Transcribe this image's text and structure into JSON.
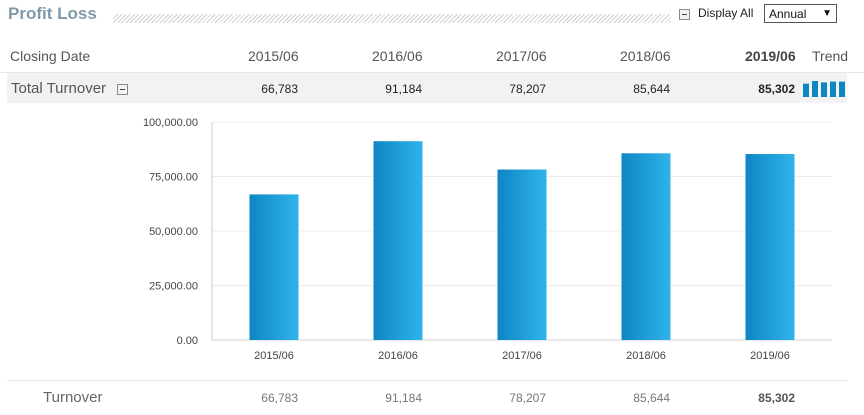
{
  "header": {
    "title": "Profit Loss",
    "display_all_label": "Display All",
    "period_selected": "Annual"
  },
  "table": {
    "closing_date_label": "Closing Date",
    "trend_label": "Trend",
    "periods": [
      "2015/06",
      "2016/06",
      "2017/06",
      "2018/06",
      "2019/06"
    ],
    "total_turnover_label": "Total Turnover",
    "total_turnover_values": [
      "66,783",
      "91,184",
      "78,207",
      "85,644",
      "85,302"
    ],
    "turnover_label": "Turnover",
    "turnover_values": [
      "66,783",
      "91,184",
      "78,207",
      "85,644",
      "85,302"
    ]
  },
  "icons": {
    "toggle": "minus-box-icon",
    "trend": "sparkline-bars-icon",
    "select_arrow": "chevron-down-icon"
  },
  "colors": {
    "title": "#7f9aaa",
    "bar_dark": "#0e86c4",
    "bar_light": "#2fb3ea",
    "row_highlight": "#f2f2f2"
  },
  "chart_data": {
    "type": "bar",
    "categories": [
      "2015/06",
      "2016/06",
      "2017/06",
      "2018/06",
      "2019/06"
    ],
    "values": [
      66783,
      91184,
      78207,
      85644,
      85302
    ],
    "ylim": [
      0,
      100000
    ],
    "yticks": [
      0,
      25000,
      50000,
      75000,
      100000
    ],
    "ytick_labels": [
      "0.00",
      "25,000.00",
      "50,000.00",
      "75,000.00",
      "100,000.00"
    ],
    "title": "",
    "xlabel": "",
    "ylabel": "",
    "grid": true,
    "legend": "none"
  }
}
